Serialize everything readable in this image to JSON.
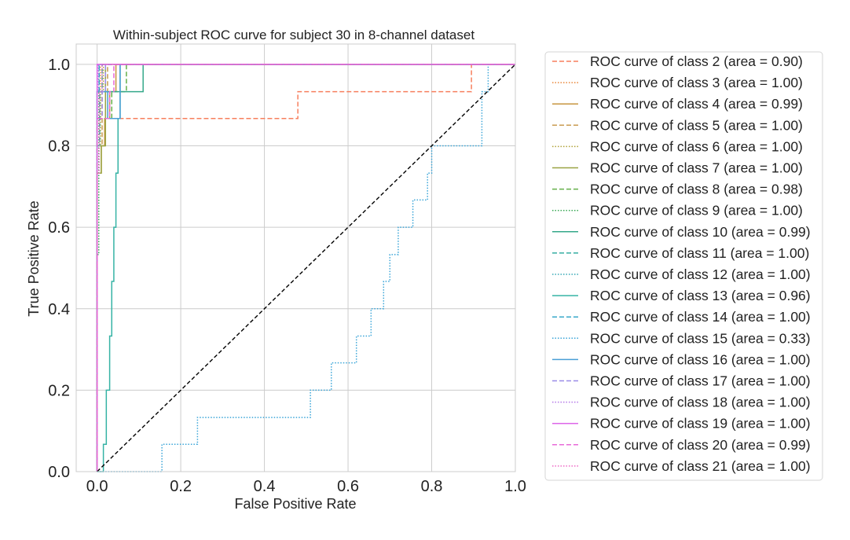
{
  "chart_data": {
    "type": "line",
    "title": "Within-subject ROC curve for subject 30 in 8-channel dataset",
    "xlabel": "False Positive Rate",
    "ylabel": "True Positive Rate",
    "xlim": [
      -0.05,
      1.0
    ],
    "ylim": [
      0.0,
      1.05
    ],
    "xticks": [
      0.0,
      0.2,
      0.4,
      0.6,
      0.8,
      1.0
    ],
    "yticks": [
      0.0,
      0.2,
      0.4,
      0.6,
      0.8,
      1.0
    ],
    "xtick_labels": [
      "0.0",
      "0.2",
      "0.4",
      "0.6",
      "0.8",
      "1.0"
    ],
    "ytick_labels": [
      "0.0",
      "0.2",
      "0.4",
      "0.6",
      "0.8",
      "1.0"
    ],
    "grid": true,
    "legend_position": "outside-right",
    "diagonal": {
      "x": [
        0,
        1
      ],
      "y": [
        0,
        1
      ],
      "color": "#000000",
      "style": "dashed"
    },
    "series": [
      {
        "name": "ROC curve of class 2 (area = 0.90)",
        "color": "#f77f5d",
        "style": "dashed",
        "x": [
          0,
          0,
          0.005,
          0.005,
          0.48,
          0.48,
          0.895,
          0.895,
          1
        ],
        "y": [
          0,
          0.867,
          0.867,
          0.867,
          0.867,
          0.933,
          0.933,
          1.0,
          1.0
        ]
      },
      {
        "name": "ROC curve of class 3 (area = 1.00)",
        "color": "#e8873a",
        "style": "dotted",
        "x": [
          0,
          0,
          0.008,
          0.008,
          1
        ],
        "y": [
          0,
          0.867,
          0.867,
          1.0,
          1.0
        ]
      },
      {
        "name": "ROC curve of class 4 (area = 0.99)",
        "color": "#c7953f",
        "style": "solid",
        "x": [
          0,
          0,
          0.01,
          0.01,
          0.018,
          0.018,
          0.03,
          0.03,
          0.045,
          0.045,
          1
        ],
        "y": [
          0,
          0.733,
          0.733,
          0.8,
          0.8,
          0.867,
          0.867,
          0.933,
          0.933,
          1.0,
          1.0
        ]
      },
      {
        "name": "ROC curve of class 5 (area = 1.00)",
        "color": "#c99b52",
        "style": "dashed",
        "x": [
          0,
          0,
          0.012,
          0.012,
          0.025,
          0.025,
          1
        ],
        "y": [
          0,
          0.8,
          0.8,
          0.933,
          0.933,
          1.0,
          1.0
        ]
      },
      {
        "name": "ROC curve of class 6 (area = 1.00)",
        "color": "#b0a23a",
        "style": "dotted",
        "x": [
          0,
          0,
          0.008,
          0.008,
          0.015,
          0.015,
          1
        ],
        "y": [
          0,
          0.8,
          0.8,
          0.933,
          0.933,
          1.0,
          1.0
        ]
      },
      {
        "name": "ROC curve of class 7 (area = 1.00)",
        "color": "#9aa444",
        "style": "solid",
        "x": [
          0,
          0,
          0.01,
          0.01,
          0.02,
          0.02,
          1
        ],
        "y": [
          0,
          0.733,
          0.733,
          0.8,
          0.8,
          1.0,
          1.0
        ]
      },
      {
        "name": "ROC curve of class 8 (area = 0.98)",
        "color": "#64b04a",
        "style": "dashed",
        "x": [
          0,
          0,
          0.035,
          0.035,
          0.07,
          0.07,
          1
        ],
        "y": [
          0,
          0.867,
          0.867,
          0.933,
          0.933,
          1.0,
          1.0
        ]
      },
      {
        "name": "ROC curve of class 9 (area = 1.00)",
        "color": "#3aa856",
        "style": "dotted",
        "x": [
          0,
          0,
          0.004,
          0.004,
          1
        ],
        "y": [
          0,
          0.533,
          0.533,
          1.0,
          1.0
        ]
      },
      {
        "name": "ROC curve of class 10 (area = 0.99)",
        "color": "#35a88a",
        "style": "solid",
        "x": [
          0,
          0,
          0.02,
          0.02,
          0.11,
          0.11,
          1
        ],
        "y": [
          0,
          0.933,
          0.933,
          0.933,
          0.933,
          1.0,
          1.0
        ]
      },
      {
        "name": "ROC curve of class 11 (area = 1.00)",
        "color": "#36ada2",
        "style": "dashed",
        "x": [
          0,
          0,
          0.006,
          0.006,
          0.012,
          0.012,
          1
        ],
        "y": [
          0,
          0.8,
          0.8,
          0.933,
          0.933,
          1.0,
          1.0
        ]
      },
      {
        "name": "ROC curve of class 12 (area = 1.00)",
        "color": "#36a9b5",
        "style": "dotted",
        "x": [
          0,
          0,
          0.004,
          0.004,
          1
        ],
        "y": [
          0,
          0.933,
          0.933,
          1.0,
          1.0
        ]
      },
      {
        "name": "ROC curve of class 13 (area = 0.96)",
        "color": "#36b3a5",
        "style": "solid",
        "x": [
          0,
          0.015,
          0.015,
          0.022,
          0.022,
          0.03,
          0.03,
          0.035,
          0.035,
          0.04,
          0.04,
          0.045,
          0.045,
          0.05,
          0.05,
          0.055,
          0.055,
          1
        ],
        "y": [
          0,
          0,
          0.067,
          0.067,
          0.2,
          0.2,
          0.333,
          0.333,
          0.467,
          0.467,
          0.6,
          0.6,
          0.733,
          0.733,
          0.867,
          0.867,
          1.0,
          1.0
        ]
      },
      {
        "name": "ROC curve of class 14 (area = 1.00)",
        "color": "#38a8c9",
        "style": "dashed",
        "x": [
          0,
          0,
          0.005,
          0.005,
          1
        ],
        "y": [
          0,
          0.933,
          0.933,
          1.0,
          1.0
        ]
      },
      {
        "name": "ROC curve of class 15 (area = 0.33)",
        "color": "#3aa5d8",
        "style": "dotted",
        "x": [
          0,
          0.155,
          0.155,
          0.24,
          0.24,
          0.51,
          0.51,
          0.56,
          0.56,
          0.62,
          0.62,
          0.655,
          0.655,
          0.685,
          0.685,
          0.7,
          0.7,
          0.72,
          0.72,
          0.755,
          0.755,
          0.79,
          0.79,
          0.8,
          0.8,
          0.855,
          0.855,
          0.92,
          0.92,
          0.935,
          0.935,
          1
        ],
        "y": [
          0,
          0,
          0.067,
          0.067,
          0.133,
          0.133,
          0.2,
          0.2,
          0.267,
          0.267,
          0.333,
          0.333,
          0.4,
          0.4,
          0.467,
          0.467,
          0.533,
          0.533,
          0.6,
          0.6,
          0.667,
          0.667,
          0.733,
          0.733,
          0.8,
          0.8,
          0.8,
          0.8,
          0.933,
          0.933,
          1.0,
          1.0
        ]
      },
      {
        "name": "ROC curve of class 16 (area = 1.00)",
        "color": "#4a9fd6",
        "style": "solid",
        "x": [
          0,
          0,
          0.025,
          0.025,
          0.055,
          0.055,
          1
        ],
        "y": [
          0,
          0.933,
          0.933,
          0.867,
          0.867,
          1.0,
          1.0
        ]
      },
      {
        "name": "ROC curve of class 17 (area = 1.00)",
        "color": "#9a8ce8",
        "style": "dashed",
        "x": [
          0,
          0,
          0.012,
          0.012,
          0.02,
          0.02,
          1
        ],
        "y": [
          0,
          0.867,
          0.867,
          0.933,
          0.933,
          1.0,
          1.0
        ]
      },
      {
        "name": "ROC curve of class 18 (area = 1.00)",
        "color": "#b57ae8",
        "style": "dotted",
        "x": [
          0,
          0,
          0.003,
          0.003,
          1
        ],
        "y": [
          0,
          0.933,
          0.933,
          1.0,
          1.0
        ]
      },
      {
        "name": "ROC curve of class 19 (area = 1.00)",
        "color": "#dd66e8",
        "style": "solid",
        "x": [
          0,
          0,
          1
        ],
        "y": [
          0,
          1.0,
          1.0
        ]
      },
      {
        "name": "ROC curve of class 20 (area = 0.99)",
        "color": "#e86ad8",
        "style": "dashed",
        "x": [
          0,
          0,
          0.03,
          0.03,
          0.04,
          0.04,
          1
        ],
        "y": [
          0,
          0.867,
          0.867,
          0.933,
          0.933,
          1.0,
          1.0
        ]
      },
      {
        "name": "ROC curve of class 21 (area = 1.00)",
        "color": "#ee6ac6",
        "style": "dotted",
        "x": [
          0,
          0,
          0.005,
          0.005,
          0.012,
          0.012,
          1
        ],
        "y": [
          0,
          0.733,
          0.733,
          0.933,
          0.933,
          1.0,
          1.0
        ]
      }
    ]
  }
}
